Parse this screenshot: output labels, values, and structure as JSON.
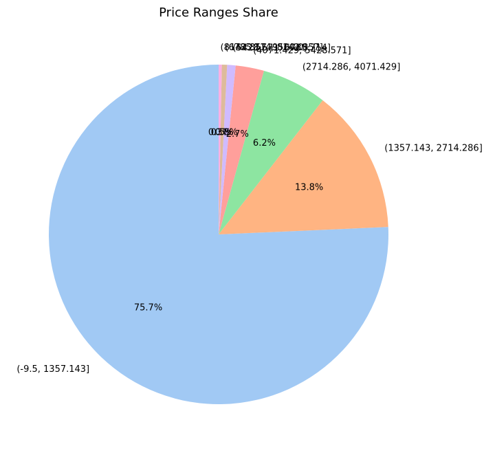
{
  "chart_data": {
    "type": "pie",
    "title": "Price Ranges Share",
    "categories": [
      "(-9.5, 1357.143]",
      "(1357.143, 2714.286]",
      "(2714.286, 4071.429]",
      "(4071.429, 5428.571]",
      "(5428.571, 6785.714]",
      "(6785.714, 8142.857]",
      "(8142.857, 9500.0]"
    ],
    "values": [
      75.7,
      13.8,
      6.2,
      2.7,
      0.8,
      0.5,
      0.3
    ],
    "value_labels": [
      "75.7%",
      "13.8%",
      "6.2%",
      "2.7%",
      "0.8%",
      "0.5%",
      "0.3%"
    ],
    "colors": [
      "#a1c9f4",
      "#ffb482",
      "#8de5a1",
      "#ff9f9b",
      "#d0bbff",
      "#debb9b",
      "#fab0e4"
    ],
    "start_angle_deg": 90,
    "direction": "counterclockwise"
  }
}
